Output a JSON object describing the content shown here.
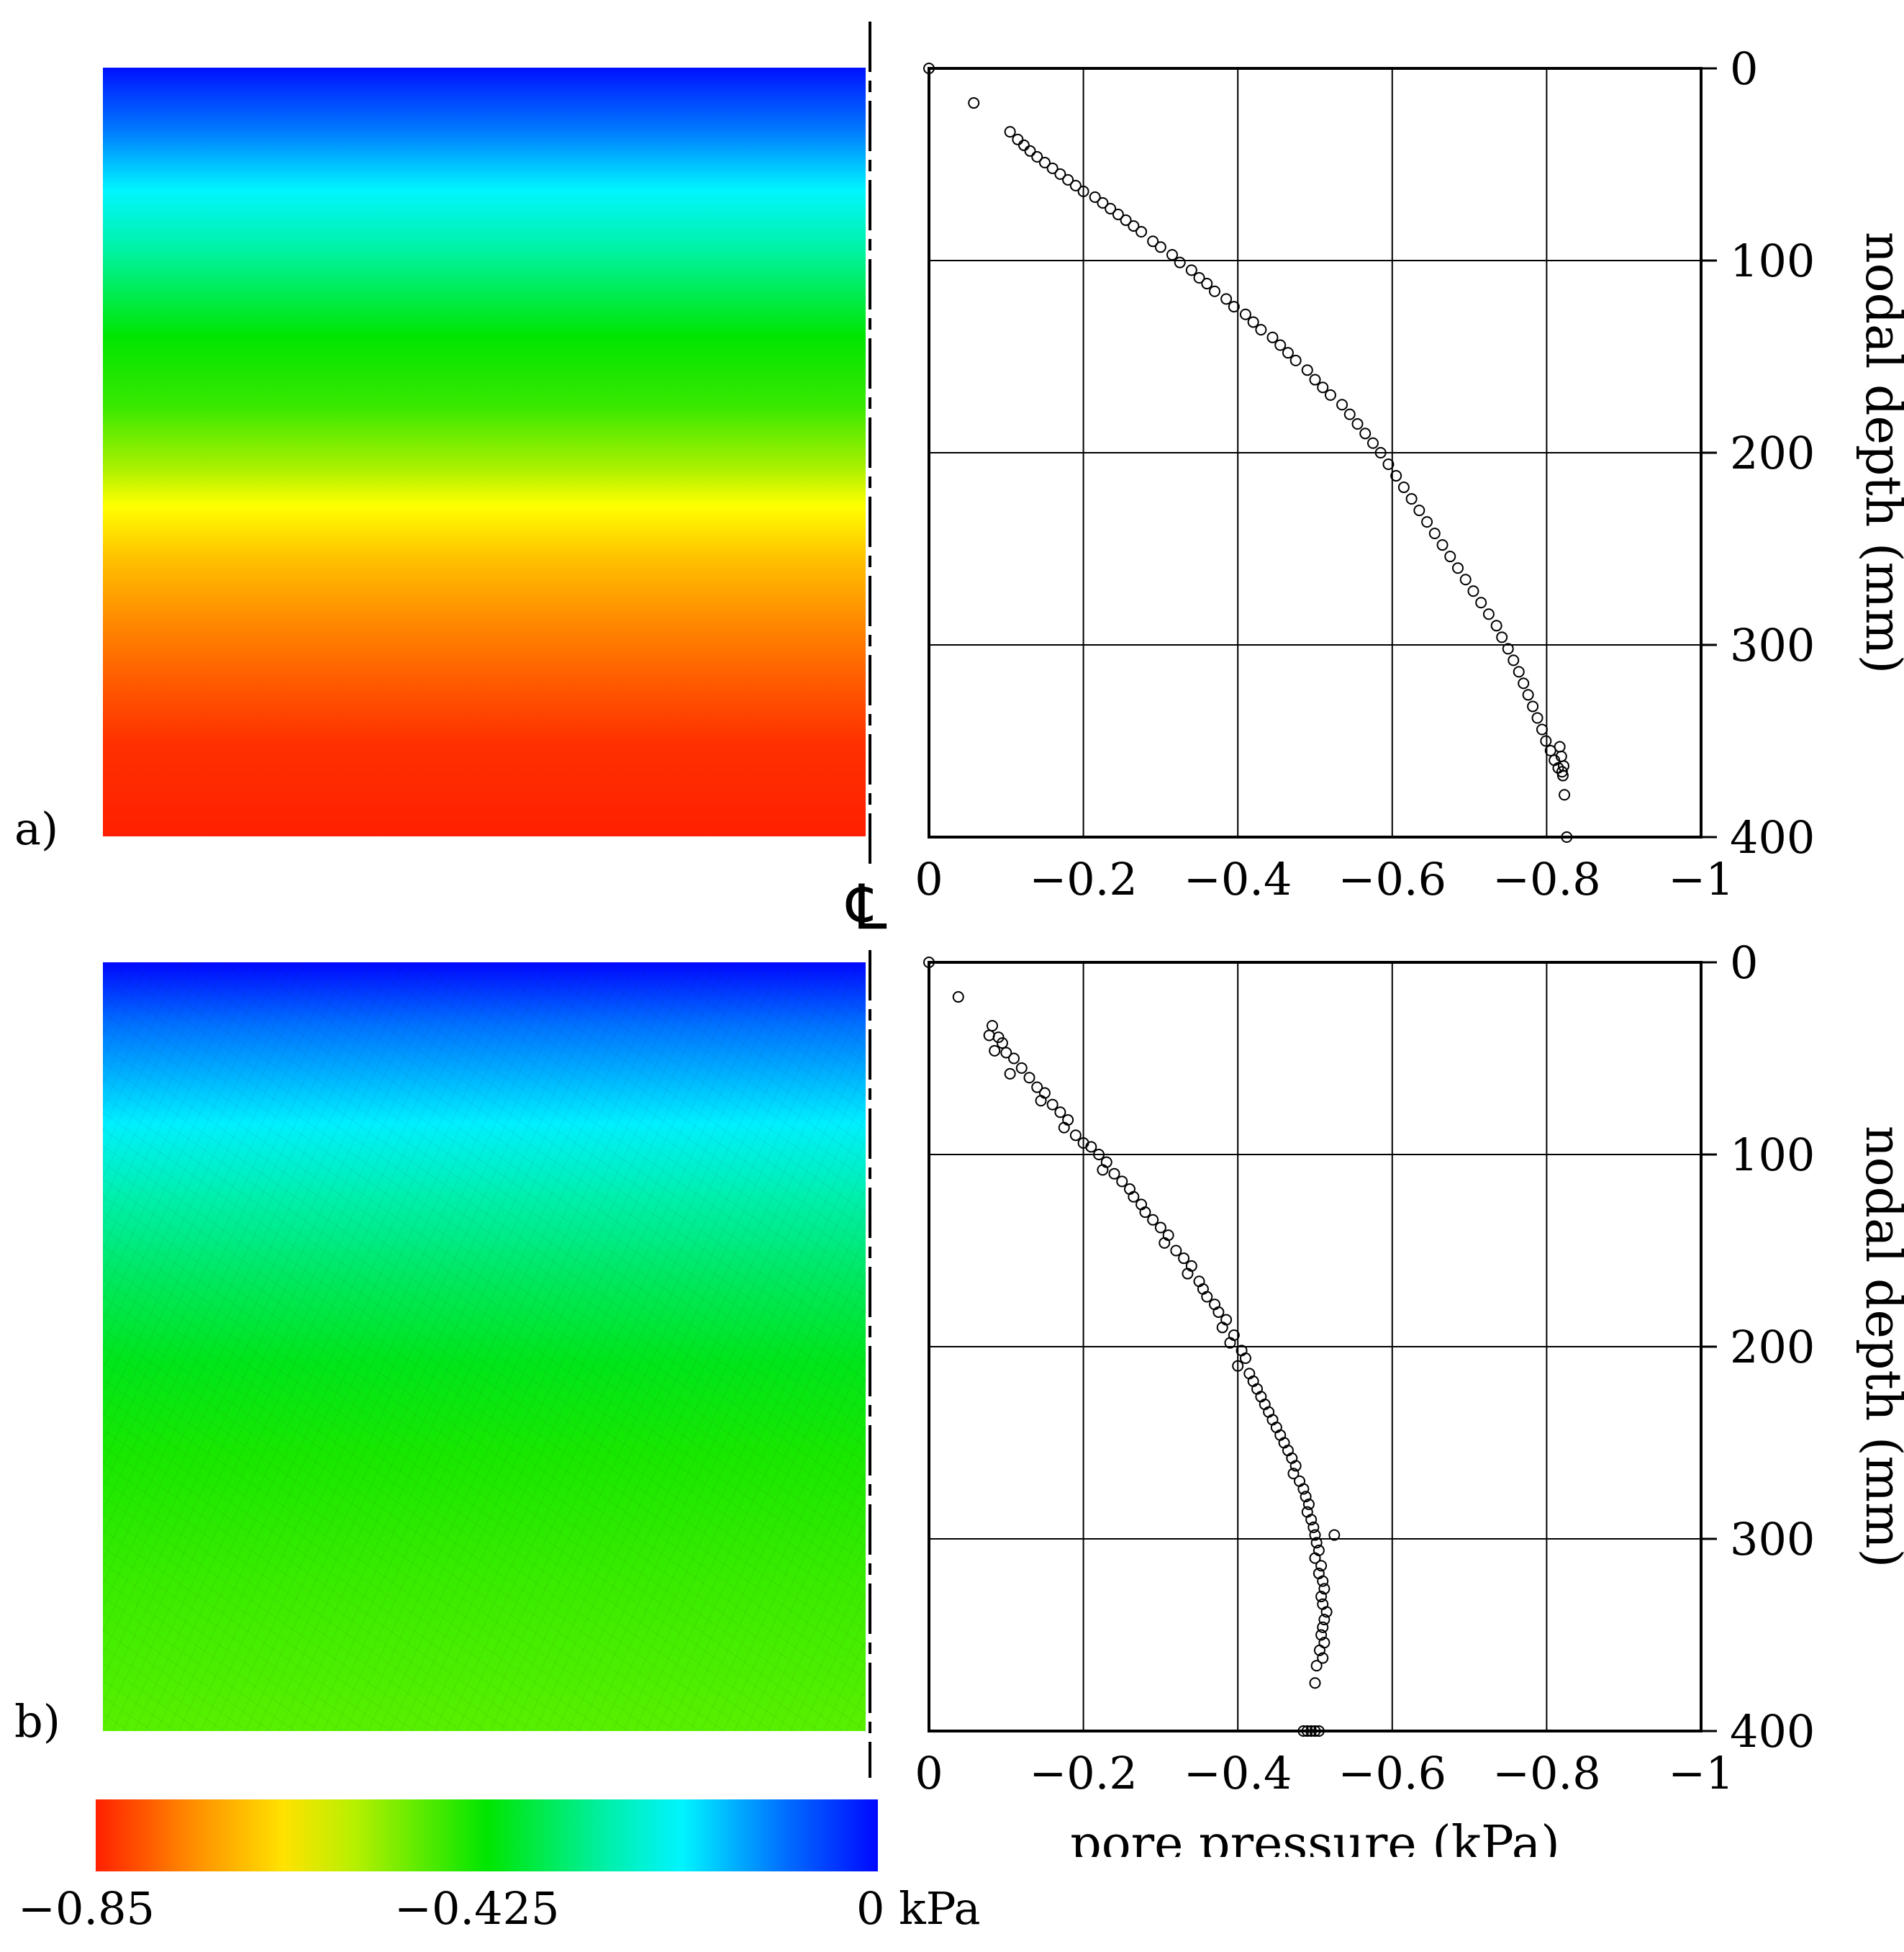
{
  "panels": {
    "a_label": "a)",
    "b_label": "b)",
    "centerline_symbol": "℄"
  },
  "colorbar": {
    "min_label": "−0.85",
    "mid_label": "−0.425",
    "max_label": "0 kPa",
    "colors": [
      "#ff2000",
      "#ffe200",
      "#00e600",
      "#00f4ff",
      "#0008ff"
    ]
  },
  "chart_data": [
    {
      "type": "scatter",
      "panel": "a",
      "title": "",
      "xlabel": "",
      "ylabel": "nodal depth (mm)",
      "xlim": [
        0,
        -1
      ],
      "ylim": [
        0,
        400
      ],
      "xticks": [
        0,
        -0.2,
        -0.4,
        -0.6,
        -0.8,
        -1
      ],
      "xtick_labels": [
        "0",
        "−0.2",
        "−0.4",
        "−0.6",
        "−0.8",
        "−1"
      ],
      "yticks": [
        0,
        100,
        200,
        300,
        400
      ],
      "ytick_labels": [
        "0",
        "100",
        "200",
        "300",
        "400"
      ],
      "grid": true,
      "points": [
        [
          0,
          0
        ],
        [
          -0.058,
          18
        ],
        [
          -0.105,
          33
        ],
        [
          -0.115,
          37
        ],
        [
          -0.123,
          40
        ],
        [
          -0.131,
          43
        ],
        [
          -0.14,
          46
        ],
        [
          -0.15,
          49
        ],
        [
          -0.16,
          52
        ],
        [
          -0.17,
          55
        ],
        [
          -0.18,
          58
        ],
        [
          -0.19,
          61
        ],
        [
          -0.2,
          64
        ],
        [
          -0.215,
          67
        ],
        [
          -0.225,
          70
        ],
        [
          -0.235,
          73
        ],
        [
          -0.245,
          76
        ],
        [
          -0.255,
          79
        ],
        [
          -0.265,
          82
        ],
        [
          -0.275,
          85
        ],
        [
          -0.29,
          90
        ],
        [
          -0.3,
          93
        ],
        [
          -0.315,
          97
        ],
        [
          -0.325,
          101
        ],
        [
          -0.34,
          105
        ],
        [
          -0.35,
          109
        ],
        [
          -0.36,
          112
        ],
        [
          -0.37,
          116
        ],
        [
          -0.385,
          120
        ],
        [
          -0.395,
          124
        ],
        [
          -0.41,
          128
        ],
        [
          -0.42,
          132
        ],
        [
          -0.43,
          136
        ],
        [
          -0.445,
          140
        ],
        [
          -0.455,
          144
        ],
        [
          -0.465,
          148
        ],
        [
          -0.475,
          152
        ],
        [
          -0.49,
          157
        ],
        [
          -0.5,
          162
        ],
        [
          -0.51,
          166
        ],
        [
          -0.52,
          170
        ],
        [
          -0.535,
          175
        ],
        [
          -0.545,
          180
        ],
        [
          -0.555,
          185
        ],
        [
          -0.565,
          190
        ],
        [
          -0.575,
          195
        ],
        [
          -0.585,
          200
        ],
        [
          -0.595,
          206
        ],
        [
          -0.605,
          212
        ],
        [
          -0.615,
          218
        ],
        [
          -0.625,
          224
        ],
        [
          -0.635,
          230
        ],
        [
          -0.645,
          236
        ],
        [
          -0.655,
          242
        ],
        [
          -0.665,
          248
        ],
        [
          -0.675,
          254
        ],
        [
          -0.685,
          260
        ],
        [
          -0.695,
          266
        ],
        [
          -0.705,
          272
        ],
        [
          -0.715,
          278
        ],
        [
          -0.725,
          284
        ],
        [
          -0.735,
          290
        ],
        [
          -0.742,
          296
        ],
        [
          -0.75,
          302
        ],
        [
          -0.757,
          308
        ],
        [
          -0.764,
          314
        ],
        [
          -0.77,
          320
        ],
        [
          -0.776,
          326
        ],
        [
          -0.782,
          332
        ],
        [
          -0.788,
          338
        ],
        [
          -0.794,
          344
        ],
        [
          -0.799,
          350
        ],
        [
          -0.805,
          355
        ],
        [
          -0.81,
          360
        ],
        [
          -0.815,
          364
        ],
        [
          -0.82,
          366
        ],
        [
          -0.821,
          368
        ],
        [
          -0.822,
          363
        ],
        [
          -0.819,
          358
        ],
        [
          -0.817,
          353
        ],
        [
          -0.823,
          378
        ],
        [
          -0.826,
          400
        ]
      ]
    },
    {
      "type": "scatter",
      "panel": "b",
      "title": "",
      "xlabel": "pore pressure (kPa)",
      "ylabel": "nodal depth (mm)",
      "xlim": [
        0,
        -1
      ],
      "ylim": [
        0,
        400
      ],
      "xticks": [
        0,
        -0.2,
        -0.4,
        -0.6,
        -0.8,
        -1
      ],
      "xtick_labels": [
        "0",
        "−0.2",
        "−0.4",
        "−0.6",
        "−0.8",
        "−1"
      ],
      "yticks": [
        0,
        100,
        200,
        300,
        400
      ],
      "ytick_labels": [
        "0",
        "100",
        "200",
        "300",
        "400"
      ],
      "grid": true,
      "points": [
        [
          0,
          0
        ],
        [
          -0.038,
          18
        ],
        [
          -0.082,
          33
        ],
        [
          -0.078,
          38
        ],
        [
          -0.09,
          39
        ],
        [
          -0.095,
          42
        ],
        [
          -0.085,
          46
        ],
        [
          -0.1,
          47
        ],
        [
          -0.11,
          50
        ],
        [
          -0.12,
          55
        ],
        [
          -0.105,
          58
        ],
        [
          -0.13,
          60
        ],
        [
          -0.14,
          65
        ],
        [
          -0.15,
          68
        ],
        [
          -0.145,
          72
        ],
        [
          -0.16,
          74
        ],
        [
          -0.17,
          78
        ],
        [
          -0.18,
          82
        ],
        [
          -0.175,
          86
        ],
        [
          -0.19,
          90
        ],
        [
          -0.2,
          94
        ],
        [
          -0.21,
          96
        ],
        [
          -0.22,
          100
        ],
        [
          -0.23,
          104
        ],
        [
          -0.225,
          108
        ],
        [
          -0.24,
          110
        ],
        [
          -0.25,
          114
        ],
        [
          -0.26,
          118
        ],
        [
          -0.265,
          122
        ],
        [
          -0.275,
          126
        ],
        [
          -0.28,
          130
        ],
        [
          -0.29,
          134
        ],
        [
          -0.3,
          138
        ],
        [
          -0.31,
          142
        ],
        [
          -0.305,
          146
        ],
        [
          -0.32,
          150
        ],
        [
          -0.33,
          154
        ],
        [
          -0.34,
          158
        ],
        [
          -0.335,
          162
        ],
        [
          -0.35,
          166
        ],
        [
          -0.355,
          170
        ],
        [
          -0.36,
          174
        ],
        [
          -0.37,
          178
        ],
        [
          -0.375,
          182
        ],
        [
          -0.385,
          186
        ],
        [
          -0.38,
          190
        ],
        [
          -0.395,
          194
        ],
        [
          -0.39,
          198
        ],
        [
          -0.405,
          202
        ],
        [
          -0.41,
          206
        ],
        [
          -0.4,
          210
        ],
        [
          -0.415,
          214
        ],
        [
          -0.42,
          218
        ],
        [
          -0.425,
          222
        ],
        [
          -0.43,
          226
        ],
        [
          -0.435,
          230
        ],
        [
          -0.44,
          234
        ],
        [
          -0.445,
          238
        ],
        [
          -0.45,
          242
        ],
        [
          -0.455,
          246
        ],
        [
          -0.46,
          250
        ],
        [
          -0.465,
          254
        ],
        [
          -0.47,
          258
        ],
        [
          -0.475,
          262
        ],
        [
          -0.472,
          266
        ],
        [
          -0.48,
          270
        ],
        [
          -0.485,
          274
        ],
        [
          -0.488,
          278
        ],
        [
          -0.492,
          282
        ],
        [
          -0.49,
          286
        ],
        [
          -0.495,
          290
        ],
        [
          -0.498,
          294
        ],
        [
          -0.5,
          298
        ],
        [
          -0.525,
          298
        ],
        [
          -0.502,
          302
        ],
        [
          -0.505,
          306
        ],
        [
          -0.5,
          310
        ],
        [
          -0.508,
          314
        ],
        [
          -0.505,
          318
        ],
        [
          -0.51,
          322
        ],
        [
          -0.512,
          326
        ],
        [
          -0.508,
          330
        ],
        [
          -0.51,
          334
        ],
        [
          -0.515,
          338
        ],
        [
          -0.512,
          342
        ],
        [
          -0.51,
          346
        ],
        [
          -0.508,
          350
        ],
        [
          -0.512,
          354
        ],
        [
          -0.506,
          358
        ],
        [
          -0.51,
          362
        ],
        [
          -0.502,
          366
        ],
        [
          -0.5,
          375
        ],
        [
          -0.485,
          400
        ],
        [
          -0.49,
          400
        ],
        [
          -0.495,
          400
        ],
        [
          -0.5,
          400
        ],
        [
          -0.505,
          400
        ]
      ]
    }
  ]
}
